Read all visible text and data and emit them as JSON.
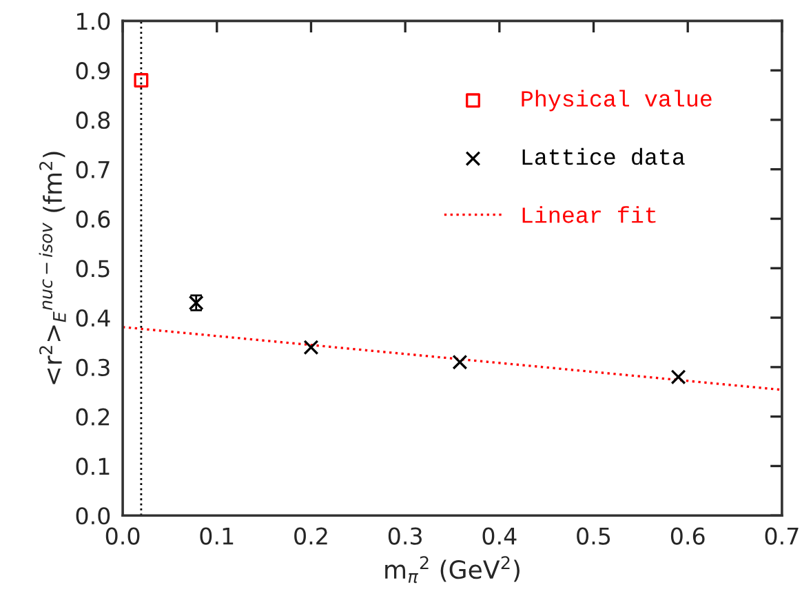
{
  "chart_data": {
    "type": "scatter",
    "xlabel": "m$_{π}$$^{2}$ (GeV$^{2}$)",
    "ylabel": "<r$^{2}$>$_{E}$$^{nuc−isov}$ (fm$^{2}$)",
    "xlim": [
      0.0,
      0.7
    ],
    "ylim": [
      0.0,
      1.0
    ],
    "xticks": [
      {
        "value": 0.0,
        "label": "0.0"
      },
      0.1,
      0.2,
      0.3,
      0.4,
      0.5,
      0.6,
      0.7
    ],
    "yticks": [
      {
        "value": 0.0,
        "label": "0.0"
      },
      0.1,
      0.2,
      0.3,
      0.4,
      0.5,
      0.6,
      0.7,
      0.8,
      0.9,
      {
        "value": 1.0,
        "label": "1.0"
      }
    ],
    "grid": false,
    "legend": "top right",
    "series": [
      {
        "name": "Physical value",
        "marker": "square",
        "color": "#ff0000",
        "x": [
          0.0196
        ],
        "values": [
          0.88
        ]
      },
      {
        "name": "Lattice data",
        "marker": "cross",
        "color": "#000000",
        "x": [
          0.078,
          0.2,
          0.358,
          0.59
        ],
        "values": [
          0.43,
          0.34,
          0.31,
          0.28
        ],
        "errors": [
          0.015,
          null,
          null,
          null
        ]
      },
      {
        "name": "Linear fit",
        "type": "line",
        "line_style": "dotted",
        "marker": "none",
        "color": "#ff0000",
        "x": [
          0.0,
          0.7
        ],
        "values": [
          0.381,
          0.254
        ]
      }
    ],
    "ref_lines": [
      {
        "axis": "x",
        "value": 0.0196,
        "color": "#000000",
        "line_style": "dotted"
      }
    ]
  }
}
